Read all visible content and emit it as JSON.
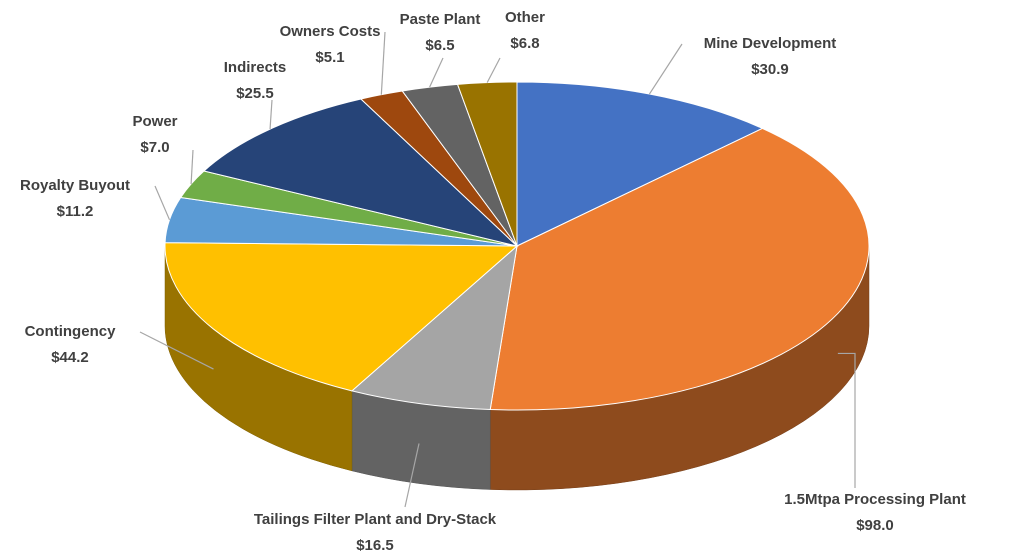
{
  "chart_data": {
    "type": "pie3d",
    "categories": [
      "Mine Development",
      "1.5Mtpa Processing Plant",
      "Tailings Filter Plant and Dry-Stack",
      "Contingency",
      "Royalty Buyout",
      "Power",
      "Indirects",
      "Owners Costs",
      "Paste Plant",
      "Other"
    ],
    "values": [
      30.9,
      98.0,
      16.5,
      44.2,
      11.2,
      7.0,
      25.5,
      5.1,
      6.5,
      6.8
    ],
    "value_labels": [
      "$30.9",
      "$98.0",
      "$16.5",
      "$44.2",
      "$11.2",
      "$7.0",
      "$25.5",
      "$5.1",
      "$6.5",
      "$6.8"
    ],
    "colors": [
      "#4472c4",
      "#ed7d31",
      "#a5a5a5",
      "#ffc000",
      "#5b9bd5",
      "#70ad47",
      "#264478",
      "#9e480e",
      "#636363",
      "#997300"
    ]
  }
}
